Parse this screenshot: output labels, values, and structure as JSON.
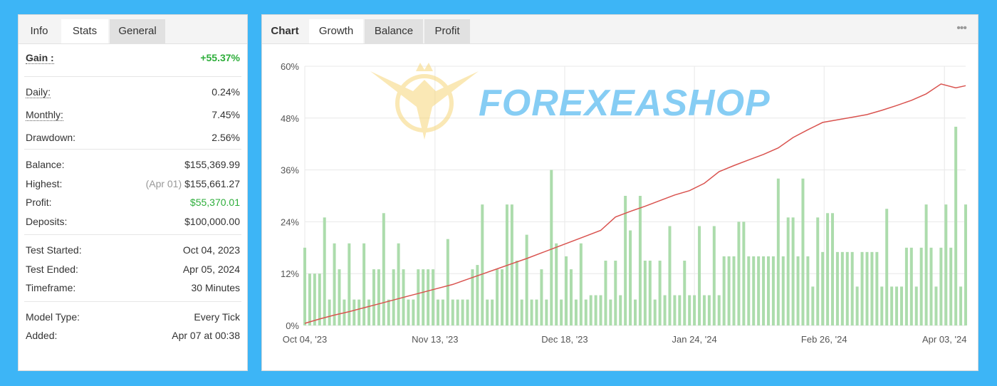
{
  "left_panel": {
    "tabs": [
      "Info",
      "Stats",
      "General"
    ],
    "active_tab": 1,
    "gain": {
      "label": "Gain :",
      "value": "+55.37%"
    },
    "groups": [
      [
        {
          "label": "Daily:",
          "value": "0.24%"
        },
        {
          "label": "Monthly:",
          "value": "7.45%"
        },
        {
          "label": "Drawdown:",
          "value": "2.56%"
        }
      ],
      [
        {
          "label": "Balance:",
          "value": "$155,369.99"
        },
        {
          "label": "Highest:",
          "note": "(Apr 01)",
          "value": "$155,661.27"
        },
        {
          "label": "Profit:",
          "value": "$55,370.01",
          "positive": true
        },
        {
          "label": "Deposits:",
          "value": "$100,000.00"
        }
      ],
      [
        {
          "label": "Test Started:",
          "value": "Oct 04, 2023"
        },
        {
          "label": "Test Ended:",
          "value": "Apr 05, 2024"
        },
        {
          "label": "Timeframe:",
          "value": "30 Minutes"
        }
      ],
      [
        {
          "label": "Model Type:",
          "value": "Every Tick"
        },
        {
          "label": "Added:",
          "value": "Apr 07 at 00:38"
        }
      ]
    ]
  },
  "right_panel": {
    "tabs": [
      "Chart",
      "Growth",
      "Balance",
      "Profit"
    ],
    "active_tab": 1,
    "menu": "•••",
    "watermark": "FOREXEASHOP"
  },
  "chart_data": {
    "type": "bar-line",
    "grid": true,
    "xlim": [
      0,
      134
    ],
    "xticks": [
      {
        "value": 0,
        "label": "Oct 04, '23"
      },
      {
        "value": 26.4,
        "label": "Nov 13, '23"
      },
      {
        "value": 52.7,
        "label": "Dec 18, '23"
      },
      {
        "value": 79,
        "label": "Jan 24, '24"
      },
      {
        "value": 105.3,
        "label": "Feb 26, '24"
      },
      {
        "value": 129.7,
        "label": "Apr 03, '24"
      }
    ],
    "ylim": [
      0,
      60
    ],
    "yticks": [
      {
        "value": 0,
        "label": "0%"
      },
      {
        "value": 12,
        "label": "12%"
      },
      {
        "value": 24,
        "label": "24%"
      },
      {
        "value": 36,
        "label": "36%"
      },
      {
        "value": 48,
        "label": "48%"
      },
      {
        "value": 60,
        "label": "60%"
      }
    ],
    "series": [
      {
        "type": "bar",
        "color": "#acdcac",
        "values": [
          18,
          12,
          12,
          12,
          25,
          6,
          19,
          13,
          6,
          19,
          6,
          6,
          19,
          6,
          13,
          13,
          26,
          6,
          13,
          19,
          13,
          6,
          6,
          13,
          13,
          13,
          13,
          6,
          6,
          20,
          6,
          6,
          6,
          6,
          13,
          14,
          28,
          6,
          6,
          13,
          13,
          28,
          28,
          15,
          6,
          21,
          6,
          6,
          13,
          6,
          36,
          19,
          6,
          16,
          13,
          6,
          19,
          6,
          7,
          7,
          7,
          15,
          6,
          15,
          7,
          30,
          22,
          6,
          30,
          15,
          15,
          6,
          15,
          7,
          23,
          7,
          7,
          15,
          7,
          7,
          23,
          7,
          7,
          23,
          7,
          16,
          16,
          16,
          24,
          24,
          16,
          16,
          16,
          16,
          16,
          16,
          34,
          16,
          25,
          25,
          16,
          34,
          16,
          9,
          25,
          17,
          26,
          26,
          17,
          17,
          17,
          17,
          9,
          17,
          17,
          17,
          17,
          9,
          27,
          9,
          9,
          9,
          18,
          18,
          9,
          18,
          28,
          18,
          9,
          18,
          28,
          18,
          46,
          9,
          28
        ]
      },
      {
        "type": "line",
        "color": "#d9534f",
        "x": [
          0,
          3,
          6,
          9,
          12,
          15,
          18,
          21,
          24,
          27,
          30,
          33,
          36,
          39,
          42,
          45,
          48,
          51,
          54,
          57,
          60,
          63,
          66,
          69,
          72,
          75,
          78,
          81,
          84,
          87,
          90,
          93,
          96,
          99,
          102,
          105,
          108,
          111,
          114,
          117,
          120,
          123,
          126,
          129,
          132,
          134
        ],
        "values": [
          0.5,
          1.5,
          2.4,
          3.2,
          4.1,
          5.0,
          5.9,
          6.8,
          7.7,
          8.6,
          9.5,
          10.7,
          11.9,
          13.1,
          14.3,
          15.5,
          16.8,
          18.1,
          19.4,
          20.7,
          22.0,
          25.1,
          26.4,
          27.6,
          28.9,
          30.2,
          31.2,
          32.9,
          35.6,
          37.0,
          38.3,
          39.6,
          41.1,
          43.5,
          45.3,
          47.0,
          47.6,
          48.2,
          48.8,
          49.8,
          50.9,
          52.1,
          53.6,
          55.9,
          55.0,
          55.5
        ]
      }
    ]
  }
}
